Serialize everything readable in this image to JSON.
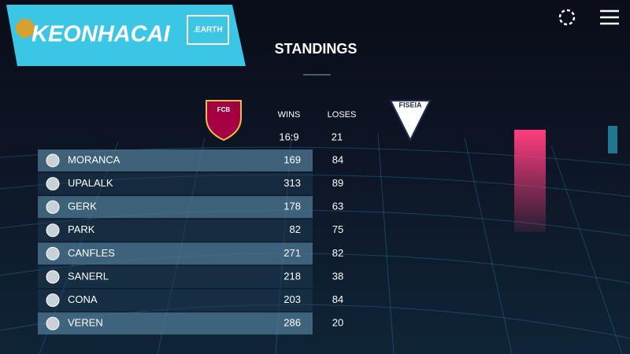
{
  "logo": {
    "name": "KEONHACAI",
    "suffix": ".EARTH"
  },
  "title": "STANDINGS",
  "crests": {
    "home": "FCB",
    "away": "FISEIA"
  },
  "table": {
    "columns": [
      "WINS",
      "LOSES"
    ],
    "summary": [
      "16:9",
      21
    ],
    "rows": [
      [
        "MORANCA",
        169,
        84
      ],
      [
        "UPALALK",
        313,
        89
      ],
      [
        "GERK",
        178,
        63
      ],
      [
        "PARK",
        82,
        75
      ],
      [
        "CANFLES",
        271,
        82
      ],
      [
        "SANERL",
        218,
        38
      ],
      [
        "CONA",
        203,
        84
      ],
      [
        "VEREN",
        286,
        20
      ]
    ]
  }
}
